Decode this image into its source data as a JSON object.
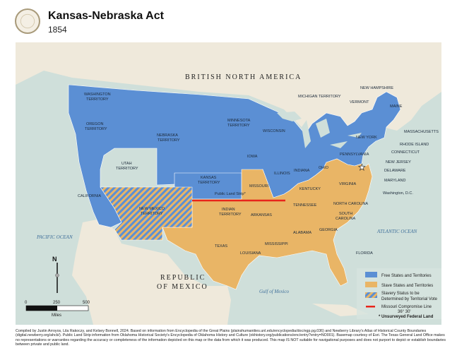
{
  "header": {
    "title": "Kansas-Nebraska Act",
    "subtitle": "1854",
    "seal_icon": "state-seal-icon"
  },
  "colors": {
    "free": "#5b8fd4",
    "slave": "#e9b566",
    "territorial_vote_stripe_a": "#5b8fd4",
    "territorial_vote_stripe_b": "#e9b566",
    "missouri_compromise_line": "#e8251b",
    "ocean": "#cfdfda",
    "land": "#efe9db"
  },
  "map": {
    "region_labels": {
      "british_north_america": "BRITISH NORTH AMERICA",
      "republic_of_mexico_1": "REPUBLIC",
      "republic_of_mexico_2": "OF MEXICO",
      "pacific_ocean": "PACIFIC OCEAN",
      "atlantic_ocean": "ATLANTIC OCEAN",
      "gulf_of_mexico": "Gulf of Mexico"
    },
    "labels": {
      "washington_1": "WASHINGTON",
      "washington_2": "TERRITORY",
      "oregon_1": "OREGON",
      "oregon_2": "TERRITORY",
      "nebraska_1": "NEBRASKA",
      "nebraska_2": "TERRITORY",
      "minnesota_1": "MINNESOTA",
      "minnesota_2": "TERRITORY",
      "utah_1": "UTAH",
      "utah_2": "TERRITORY",
      "kansas_1": "KANSAS",
      "kansas_2": "TERRITORY",
      "california": "CALIFORNIA",
      "new_mexico_1": "NEW MEXICO",
      "new_mexico_2": "TERRITORY",
      "public_land_strip": "Public Land Strip*",
      "indian_1": "INDIAN",
      "indian_2": "TERRITORY",
      "texas": "TEXAS",
      "iowa": "IOWA",
      "wisconsin": "WISCONSIN",
      "michigan_territory": "MICHIGAN TERRITORY",
      "illinois": "ILLINOIS",
      "indiana": "INDIANA",
      "ohio": "OHIO",
      "missouri": "MISSOURI",
      "arkansas": "ARKANSAS",
      "louisiana": "LOUISIANA",
      "mississippi": "MISSISSIPPI",
      "alabama": "ALABAMA",
      "georgia": "GEORGIA",
      "florida": "FLORIDA",
      "tennessee": "TENNESSEE",
      "kentucky": "KENTUCKY",
      "virginia": "VIRGINIA",
      "north_carolina": "NORTH CAROLINA",
      "south_carolina_1": "SOUTH",
      "south_carolina_2": "CAROLINA",
      "pennsylvania": "PENNSYLVANIA",
      "new_york": "NEW YORK",
      "new_hampshire": "NEW HAMPSHIRE",
      "vermont": "VERMONT",
      "maine": "MAINE",
      "massachusetts": "MASSACHUSETTS",
      "rhode_island": "RHODE ISLAND",
      "connecticut": "CONNECTICUT",
      "new_jersey": "NEW JERSEY",
      "delaware": "DELAWARE",
      "maryland": "MARYLAND",
      "washington_dc": "Washington, D.C."
    },
    "scale": {
      "ticks": [
        "0",
        "250",
        "500"
      ],
      "unit": "Miles"
    },
    "north_arrow_label": "N",
    "legend": {
      "items": [
        {
          "label": "Free States and Territories",
          "swatch": "free"
        },
        {
          "label": "Slave States and Territories",
          "swatch": "slave"
        },
        {
          "label": "Slavery Status to be",
          "label2": "Determined by Territorial Vote",
          "swatch": "striped"
        },
        {
          "label": "Missouri Compromise Line",
          "label2": "36° 30'",
          "swatch": "line"
        }
      ],
      "footnote": "* Unsurveyed Federal Land"
    }
  },
  "footer": {
    "credits": "Compiled by Justin Arroyos, Lila Rakoczy, and Kelsey Bonnell, 2024. Based on information from Encyclopedia of the Great Plains (plainshumanities.unl.edu/encyclopedia/doc/egp.pg.036) and Newberry Library's Atlas of Historical County Boundaries (digital.newberry.org/ahcb/). Public Land Strip information from Oklahoma Historical Society's Encyclopedia of Oklahoma History and Culture (okhistory.org/publications/enc/entry?entry=NO001). Basemap courtesy of Esri. The Texas General Land Office makes no representations or warranties regarding the accuracy or completeness of the information depicted on this map or the data from which it was produced. This map IS NOT suitable for navigational purposes and does not purport to depict or establish boundaries between private and public land."
  }
}
